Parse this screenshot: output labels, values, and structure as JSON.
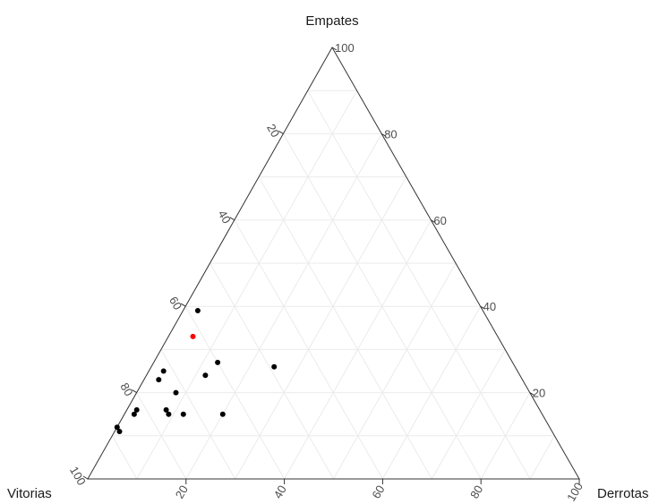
{
  "chart_data": {
    "type": "scatter",
    "subtype": "ternary",
    "axes": {
      "top": "Empates",
      "left": "Vitorias",
      "right": "Derrotas"
    },
    "range": [
      0,
      100
    ],
    "ticks": [
      20,
      40,
      60,
      80,
      100
    ],
    "grid": true,
    "point_color": "#000000",
    "highlight_color": "#ff0000",
    "points": [
      {
        "vitorias": 58,
        "empates": 39,
        "derrotas": 3,
        "highlight": false
      },
      {
        "vitorias": 62,
        "empates": 33,
        "derrotas": 5,
        "highlight": true
      },
      {
        "vitorias": 60,
        "empates": 27,
        "derrotas": 13,
        "highlight": false
      },
      {
        "vitorias": 49,
        "empates": 26,
        "derrotas": 25,
        "highlight": false
      },
      {
        "vitorias": 72,
        "empates": 25,
        "derrotas": 3,
        "highlight": false
      },
      {
        "vitorias": 74,
        "empates": 23,
        "derrotas": 3,
        "highlight": false
      },
      {
        "vitorias": 64,
        "empates": 24,
        "derrotas": 12,
        "highlight": false
      },
      {
        "vitorias": 72,
        "empates": 20,
        "derrotas": 8,
        "highlight": false
      },
      {
        "vitorias": 82,
        "empates": 16,
        "derrotas": 2,
        "highlight": false
      },
      {
        "vitorias": 83,
        "empates": 15,
        "derrotas": 2,
        "highlight": false
      },
      {
        "vitorias": 76,
        "empates": 16,
        "derrotas": 8,
        "highlight": false
      },
      {
        "vitorias": 76,
        "empates": 15,
        "derrotas": 9,
        "highlight": false
      },
      {
        "vitorias": 73,
        "empates": 15,
        "derrotas": 12,
        "highlight": false
      },
      {
        "vitorias": 65,
        "empates": 15,
        "derrotas": 20,
        "highlight": false
      },
      {
        "vitorias": 88,
        "empates": 11,
        "derrotas": 1,
        "highlight": false
      },
      {
        "vitorias": 88,
        "empates": 12,
        "derrotas": 0,
        "highlight": false
      }
    ]
  }
}
